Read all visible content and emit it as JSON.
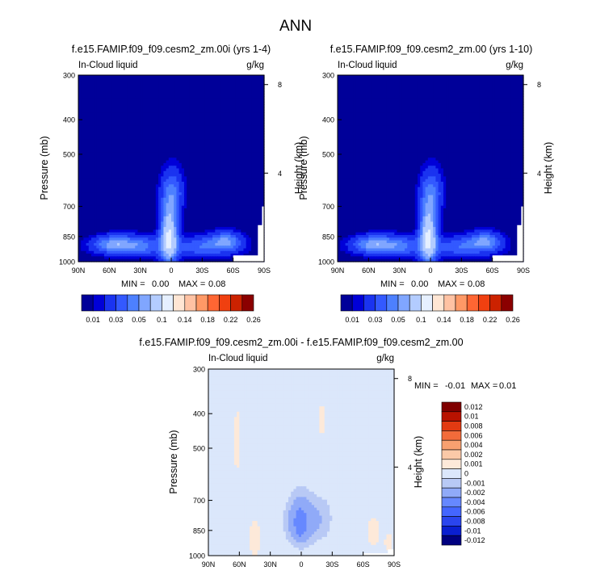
{
  "figure": {
    "title": "ANN"
  },
  "colors": {
    "abs_colormap": [
      "#000099",
      "#0000d8",
      "#1a33f0",
      "#3359ff",
      "#4d80ff",
      "#80a6ff",
      "#b3ccff",
      "#e6f0ff",
      "#ffe6d4",
      "#ffc2a3",
      "#ff9966",
      "#ff6633",
      "#f04010",
      "#cc2200",
      "#8b0000"
    ],
    "diff_colormap": [
      "#000080",
      "#0a1fd0",
      "#2a45ee",
      "#4466ff",
      "#6688ff",
      "#90aaf8",
      "#b8c9f5",
      "#dbe7fb",
      "#fde9d9",
      "#fbc9a8",
      "#f8a070",
      "#f26b3a",
      "#e23a12",
      "#b81200",
      "#800000"
    ]
  },
  "chart_data": [
    {
      "type": "heatmap",
      "title": "f.e15.FAMIP.f09_f09.cesm2_zm.00i (yrs 1-4)",
      "left_label": "In-Cloud liquid",
      "right_label": "g/kg",
      "ylabel": "Pressure (mb)",
      "ylabel_right": "Height (km)",
      "yticks": [
        "300",
        "400",
        "500",
        "700",
        "850",
        "1000"
      ],
      "yticks_right": [
        "8",
        "4"
      ],
      "xticks": [
        "90N",
        "60N",
        "30N",
        "0",
        "30S",
        "60S",
        "90S"
      ],
      "xlim": [
        90,
        -90
      ],
      "ylim": [
        1000,
        300
      ],
      "stats": {
        "min_label": "MIN =",
        "min": "0.00",
        "max_label": "MAX =",
        "max": "0.08"
      },
      "colorbar": {
        "orientation": "horizontal",
        "labels": [
          "0.01",
          "0.03",
          "0.05",
          "0.1",
          "0.14",
          "0.18",
          "0.22",
          "0.26"
        ]
      },
      "contour_levels": [
        0.005,
        0.01,
        0.02,
        0.03,
        0.04,
        0.05,
        0.07
      ]
    },
    {
      "type": "heatmap",
      "title": "f.e15.FAMIP.f09_f09.cesm2_zm.00 (yrs 1-10)",
      "left_label": "In-Cloud liquid",
      "right_label": "g/kg",
      "ylabel": "Pressure (mb)",
      "ylabel_right": "Height (km)",
      "yticks": [
        "300",
        "400",
        "500",
        "700",
        "850",
        "1000"
      ],
      "yticks_right": [
        "8",
        "4"
      ],
      "xticks": [
        "90N",
        "60N",
        "30N",
        "0",
        "30S",
        "60S",
        "90S"
      ],
      "xlim": [
        90,
        -90
      ],
      "ylim": [
        1000,
        300
      ],
      "stats": {
        "min_label": "MIN =",
        "min": "0.00",
        "max_label": "MAX =",
        "max": "0.08"
      },
      "colorbar": {
        "orientation": "horizontal",
        "labels": [
          "0.01",
          "0.03",
          "0.05",
          "0.1",
          "0.14",
          "0.18",
          "0.22",
          "0.26"
        ]
      },
      "contour_levels": [
        0.005,
        0.01,
        0.02,
        0.03,
        0.04,
        0.05,
        0.07
      ]
    },
    {
      "type": "heatmap",
      "title": "f.e15.FAMIP.f09_f09.cesm2_zm.00i - f.e15.FAMIP.f09_f09.cesm2_zm.00",
      "left_label": "In-Cloud liquid",
      "right_label": "g/kg",
      "ylabel": "Pressure (mb)",
      "ylabel_right": "Height (km)",
      "yticks": [
        "300",
        "400",
        "500",
        "700",
        "850",
        "1000"
      ],
      "yticks_right": [
        "8",
        "4"
      ],
      "xticks": [
        "90N",
        "60N",
        "30N",
        "0",
        "30S",
        "60S",
        "90S"
      ],
      "xlim": [
        90,
        -90
      ],
      "ylim": [
        1000,
        300
      ],
      "stats": {
        "min_label": "MIN =",
        "min": "-0.01",
        "max_label": "MAX =",
        "max": "0.01"
      },
      "colorbar": {
        "orientation": "vertical",
        "labels": [
          "0.012",
          "0.01",
          "0.008",
          "0.006",
          "0.004",
          "0.002",
          "0.001",
          "0",
          "-0.001",
          "-0.002",
          "-0.004",
          "-0.006",
          "-0.008",
          "-0.01",
          "-0.012"
        ]
      }
    }
  ]
}
